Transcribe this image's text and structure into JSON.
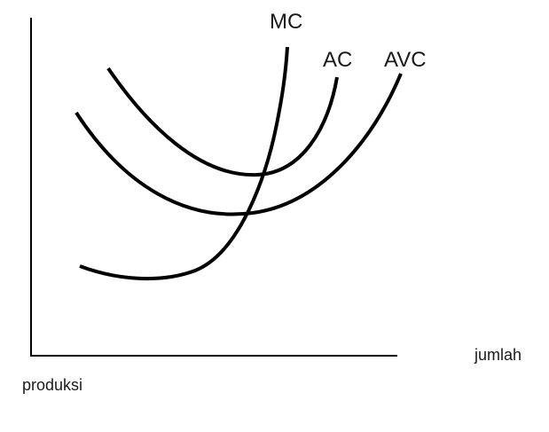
{
  "curves": [
    {
      "id": "mc",
      "label": "MC"
    },
    {
      "id": "ac",
      "label": "AC"
    },
    {
      "id": "avc",
      "label": "AVC"
    }
  ],
  "axes": {
    "x_label": "jumlah",
    "y_label": "produksi"
  },
  "colors": {
    "line": "#000000",
    "text": "#1a1a1a",
    "background": "#ffffff"
  }
}
